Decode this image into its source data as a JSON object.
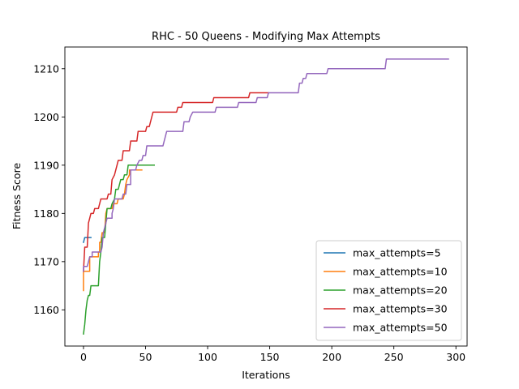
{
  "chart_data": {
    "type": "line",
    "title": "RHC - 50 Queens - Modifying Max Attempts",
    "xlabel": "Iterations",
    "ylabel": "Fitness Score",
    "xlim": [
      -15,
      309
    ],
    "ylim": [
      1152.5,
      1214.5
    ],
    "xticks": [
      0,
      50,
      100,
      150,
      200,
      250,
      300
    ],
    "yticks": [
      1160,
      1170,
      1180,
      1190,
      1200,
      1210
    ],
    "grid": false,
    "legend_position": "lower-right",
    "series": [
      {
        "name": "max_attempts=5",
        "color": "#1f77b4",
        "points": [
          [
            0,
            1174
          ],
          [
            1,
            1175
          ],
          [
            6,
            1175
          ]
        ]
      },
      {
        "name": "max_attempts=10",
        "color": "#ff7f0e",
        "points": [
          [
            0,
            1164
          ],
          [
            0,
            1168
          ],
          [
            5,
            1168
          ],
          [
            5,
            1171
          ],
          [
            12,
            1171
          ],
          [
            12,
            1172
          ],
          [
            13,
            1172
          ],
          [
            13,
            1174
          ],
          [
            14,
            1174
          ],
          [
            15,
            1176
          ],
          [
            17,
            1176
          ],
          [
            18,
            1180
          ],
          [
            19,
            1181
          ],
          [
            23,
            1181
          ],
          [
            24,
            1182
          ],
          [
            27,
            1182
          ],
          [
            28,
            1183
          ],
          [
            32,
            1183
          ],
          [
            33,
            1184
          ],
          [
            34,
            1186
          ],
          [
            35,
            1187
          ],
          [
            37,
            1188
          ],
          [
            37,
            1189
          ],
          [
            47,
            1189
          ]
        ]
      },
      {
        "name": "max_attempts=20",
        "color": "#2ca02c",
        "points": [
          [
            0,
            1155
          ],
          [
            1,
            1157
          ],
          [
            2,
            1160
          ],
          [
            3,
            1162
          ],
          [
            4,
            1163
          ],
          [
            5,
            1163
          ],
          [
            6,
            1165
          ],
          [
            12,
            1165
          ],
          [
            13,
            1170
          ],
          [
            14,
            1172
          ],
          [
            15,
            1175
          ],
          [
            17,
            1175
          ],
          [
            18,
            1178
          ],
          [
            19,
            1181
          ],
          [
            22,
            1181
          ],
          [
            23,
            1182
          ],
          [
            25,
            1183
          ],
          [
            26,
            1185
          ],
          [
            28,
            1185
          ],
          [
            29,
            1186
          ],
          [
            30,
            1187
          ],
          [
            32,
            1187
          ],
          [
            33,
            1188
          ],
          [
            35,
            1188
          ],
          [
            36,
            1190
          ],
          [
            57,
            1190
          ]
        ]
      },
      {
        "name": "max_attempts=30",
        "color": "#d62728",
        "points": [
          [
            0,
            1168
          ],
          [
            1,
            1173
          ],
          [
            3,
            1173
          ],
          [
            4,
            1178
          ],
          [
            5,
            1179
          ],
          [
            6,
            1180
          ],
          [
            8,
            1180
          ],
          [
            9,
            1181
          ],
          [
            12,
            1181
          ],
          [
            13,
            1182
          ],
          [
            14,
            1183
          ],
          [
            19,
            1183
          ],
          [
            20,
            1184
          ],
          [
            22,
            1184
          ],
          [
            23,
            1187
          ],
          [
            25,
            1188
          ],
          [
            27,
            1190
          ],
          [
            28,
            1191
          ],
          [
            31,
            1191
          ],
          [
            32,
            1193
          ],
          [
            37,
            1193
          ],
          [
            38,
            1195
          ],
          [
            43,
            1195
          ],
          [
            44,
            1197
          ],
          [
            50,
            1197
          ],
          [
            51,
            1198
          ],
          [
            53,
            1198
          ],
          [
            54,
            1199
          ],
          [
            56,
            1201
          ],
          [
            75,
            1201
          ],
          [
            76,
            1202
          ],
          [
            79,
            1202
          ],
          [
            80,
            1203
          ],
          [
            104,
            1203
          ],
          [
            105,
            1204
          ],
          [
            133,
            1204
          ],
          [
            134,
            1205
          ],
          [
            149,
            1205
          ]
        ]
      },
      {
        "name": "max_attempts=50",
        "color": "#9467bd",
        "points": [
          [
            0,
            1168
          ],
          [
            0,
            1169
          ],
          [
            3,
            1169
          ],
          [
            4,
            1170
          ],
          [
            5,
            1171
          ],
          [
            7,
            1171
          ],
          [
            7,
            1172
          ],
          [
            14,
            1172
          ],
          [
            15,
            1173
          ],
          [
            16,
            1176
          ],
          [
            17,
            1177
          ],
          [
            18,
            1178
          ],
          [
            19,
            1179
          ],
          [
            23,
            1179
          ],
          [
            23,
            1180
          ],
          [
            24,
            1181
          ],
          [
            25,
            1183
          ],
          [
            31,
            1183
          ],
          [
            32,
            1184
          ],
          [
            34,
            1184
          ],
          [
            35,
            1186
          ],
          [
            38,
            1186
          ],
          [
            38,
            1189
          ],
          [
            42,
            1189
          ],
          [
            43,
            1190
          ],
          [
            45,
            1191
          ],
          [
            47,
            1191
          ],
          [
            48,
            1192
          ],
          [
            50,
            1192
          ],
          [
            51,
            1194
          ],
          [
            64,
            1194
          ],
          [
            65,
            1195
          ],
          [
            67,
            1197
          ],
          [
            80,
            1197
          ],
          [
            81,
            1199
          ],
          [
            85,
            1199
          ],
          [
            86,
            1200
          ],
          [
            88,
            1201
          ],
          [
            106,
            1201
          ],
          [
            107,
            1202
          ],
          [
            124,
            1202
          ],
          [
            125,
            1203
          ],
          [
            139,
            1203
          ],
          [
            140,
            1204
          ],
          [
            148,
            1204
          ],
          [
            149,
            1205
          ],
          [
            173,
            1205
          ],
          [
            174,
            1207
          ],
          [
            176,
            1207
          ],
          [
            177,
            1208
          ],
          [
            179,
            1208
          ],
          [
            180,
            1209
          ],
          [
            196,
            1209
          ],
          [
            197,
            1210
          ],
          [
            243,
            1210
          ],
          [
            244,
            1212
          ],
          [
            294,
            1212
          ]
        ]
      }
    ]
  }
}
